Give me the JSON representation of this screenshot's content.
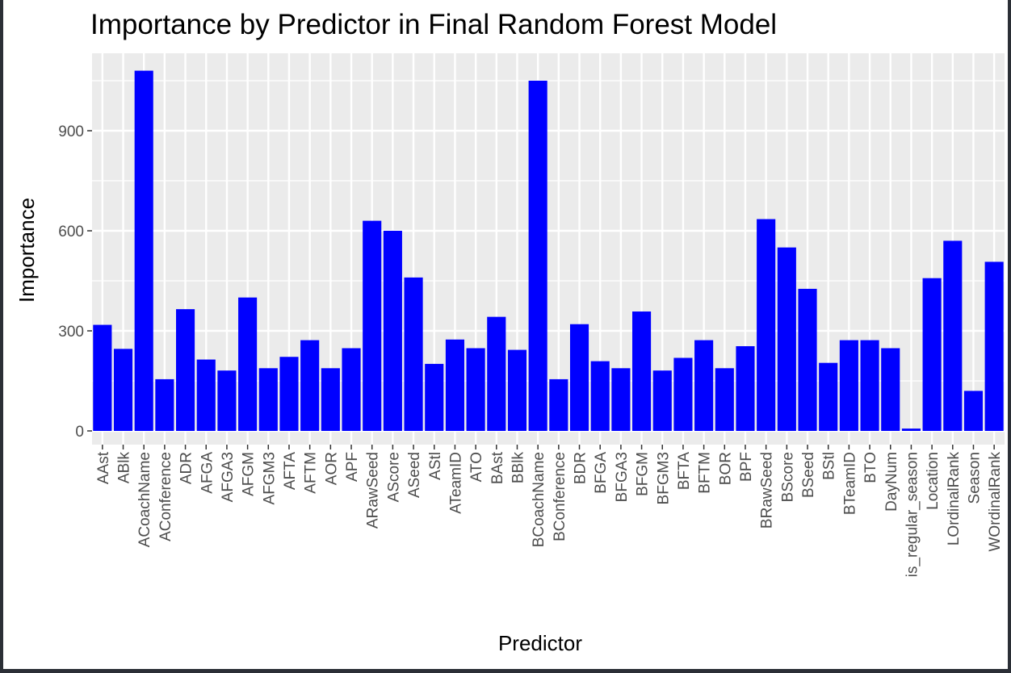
{
  "chart_data": {
    "type": "bar",
    "title": "Importance by Predictor in Final Random Forest Model",
    "xlabel": "Predictor",
    "ylabel": "Importance",
    "ylim": [
      0,
      1080
    ],
    "yticks": [
      0,
      300,
      600,
      900
    ],
    "grid": true,
    "bar_color": "#0000ff",
    "panel_color": "#ebebeb",
    "grid_color": "#ffffff",
    "categories": [
      "AAst",
      "ABlk",
      "ACoachName",
      "AConference",
      "ADR",
      "AFGA",
      "AFGA3",
      "AFGM",
      "AFGM3",
      "AFTA",
      "AFTM",
      "AOR",
      "APF",
      "ARawSeed",
      "AScore",
      "ASeed",
      "AStl",
      "ATeamID",
      "ATO",
      "BAst",
      "BBlk",
      "BCoachName",
      "BConference",
      "BDR",
      "BFGA",
      "BFGA3",
      "BFGM",
      "BFGM3",
      "BFTA",
      "BFTM",
      "BOR",
      "BPF",
      "BRawSeed",
      "BScore",
      "BSeed",
      "BStl",
      "BTeamID",
      "BTO",
      "DayNum",
      "is_regular_season",
      "Location",
      "LOrdinalRank",
      "Season",
      "WOrdinalRank"
    ],
    "values": [
      318,
      246,
      1080,
      155,
      365,
      214,
      181,
      400,
      188,
      222,
      272,
      188,
      248,
      630,
      600,
      460,
      201,
      274,
      248,
      342,
      243,
      1050,
      155,
      320,
      209,
      188,
      358,
      181,
      219,
      272,
      188,
      254,
      635,
      550,
      426,
      204,
      272,
      272,
      248,
      7,
      458,
      570,
      120,
      507
    ]
  }
}
